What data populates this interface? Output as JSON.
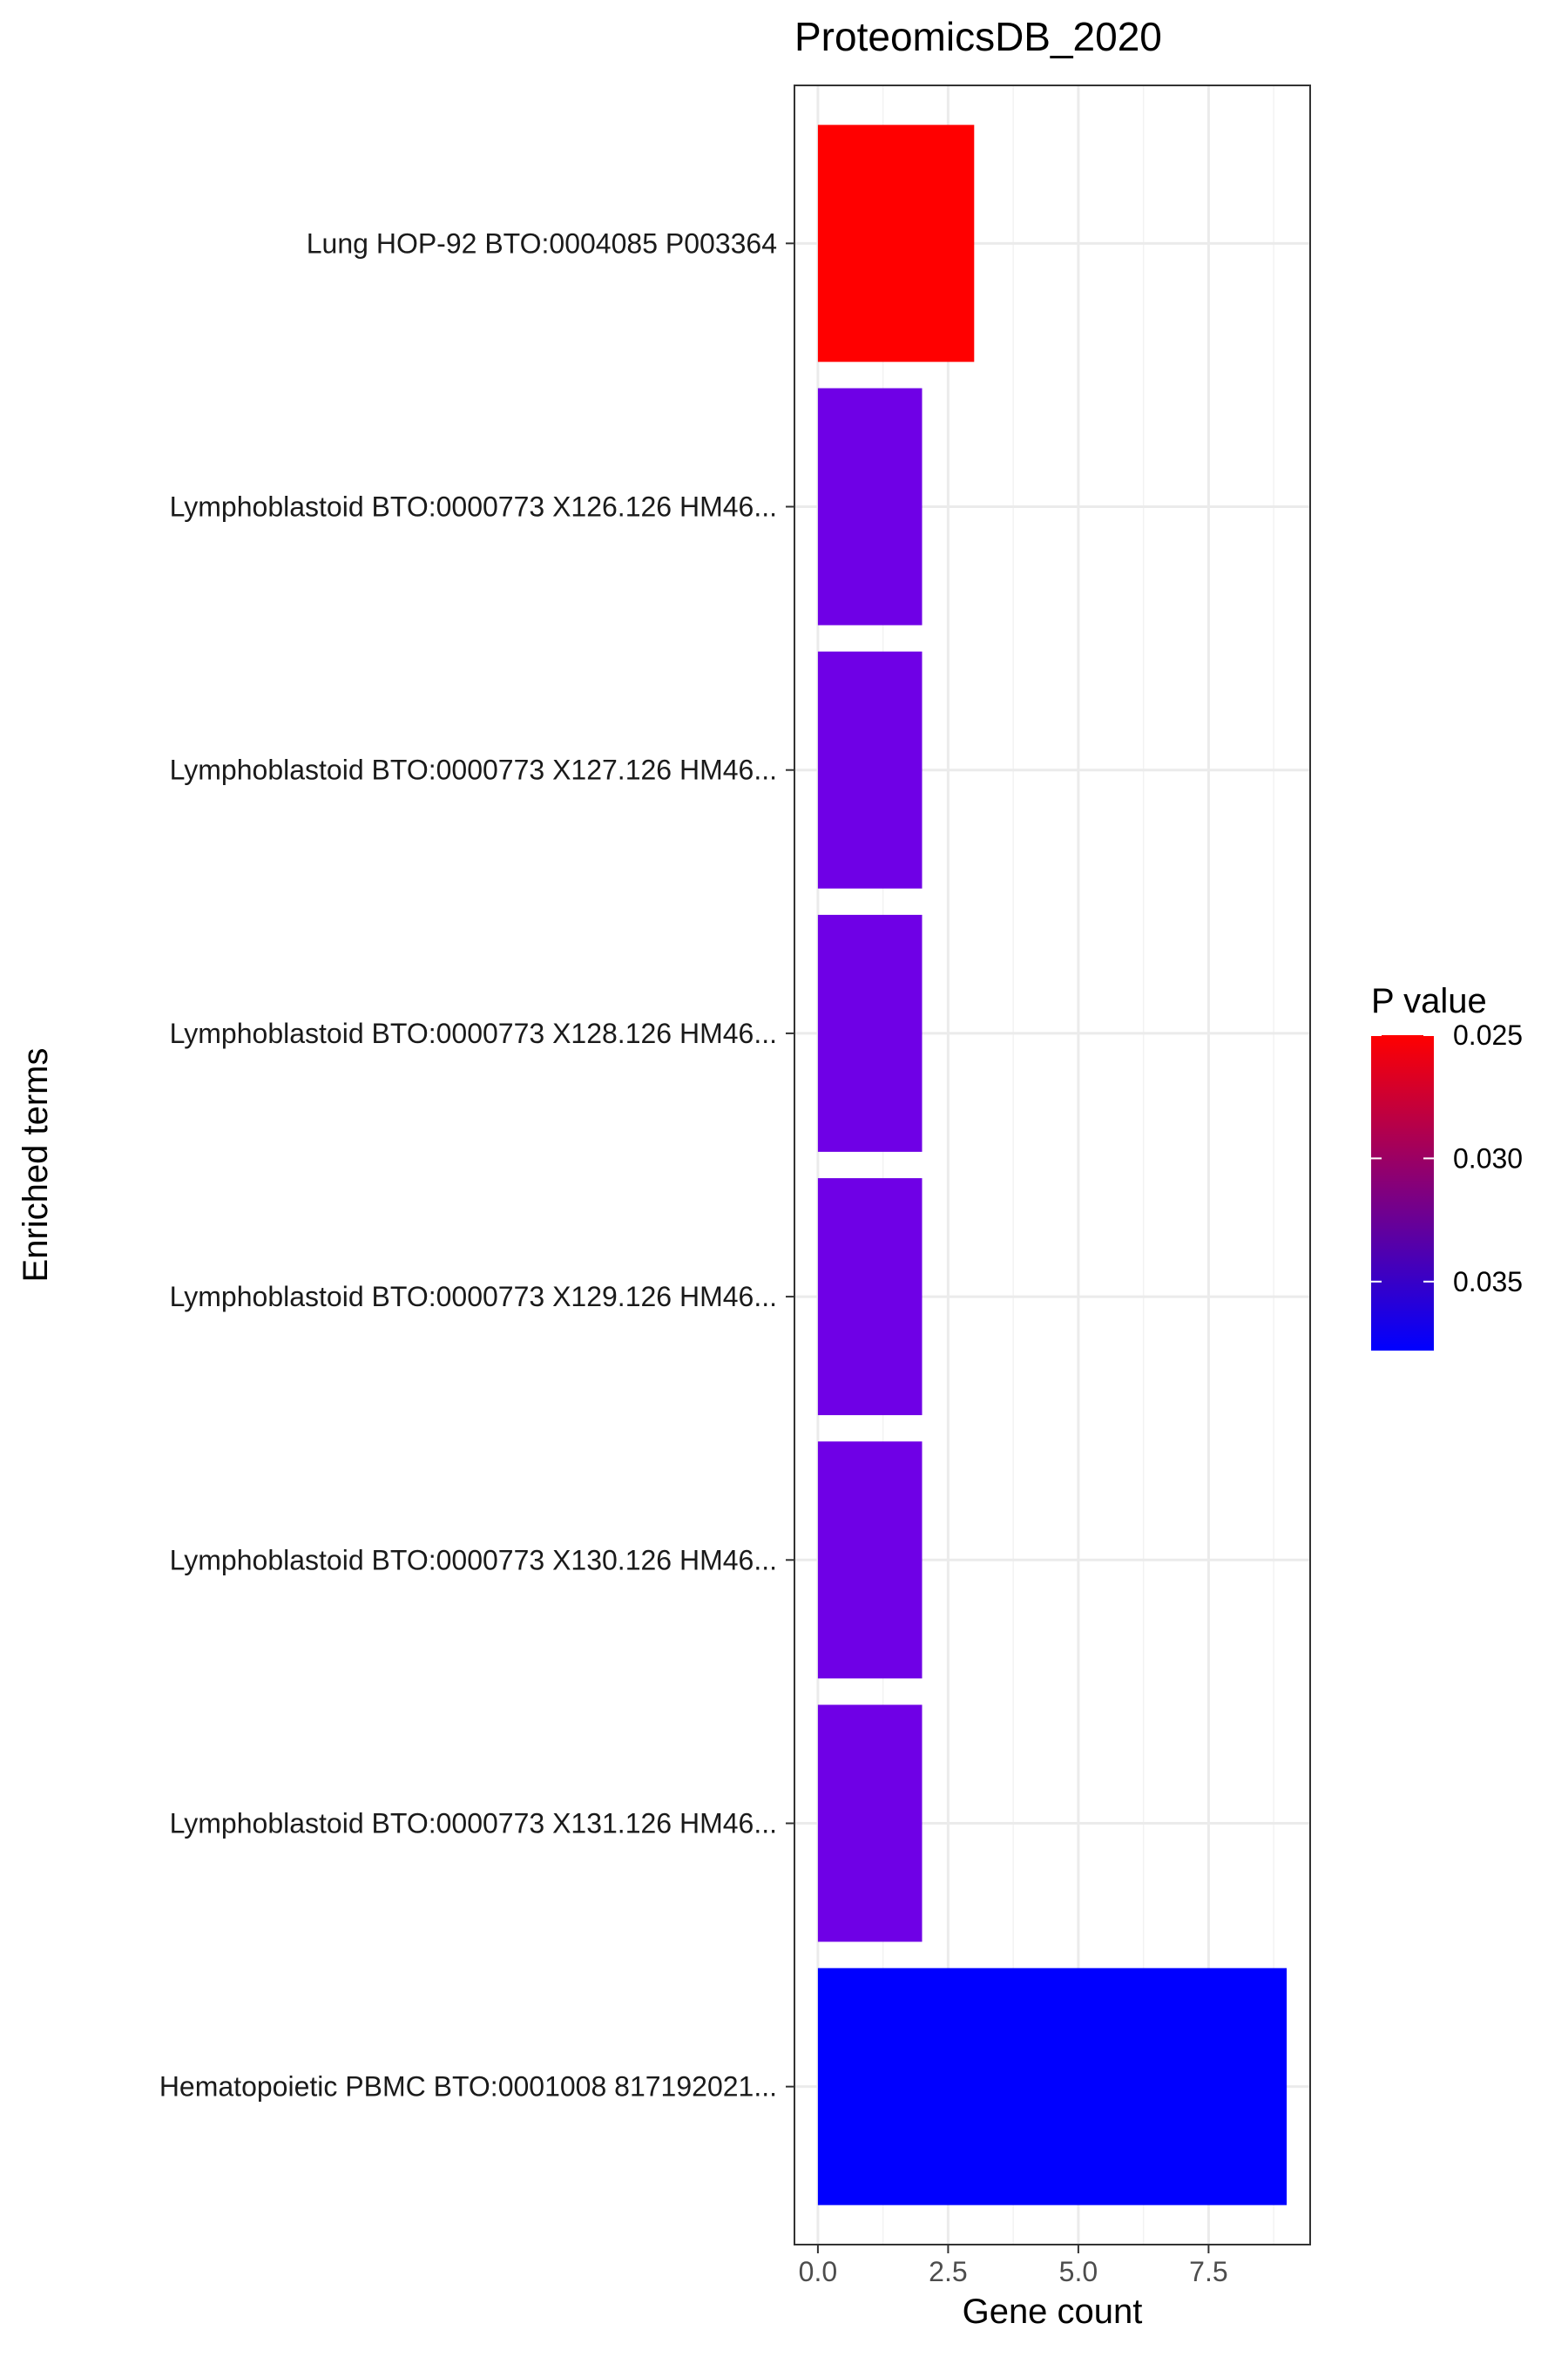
{
  "chart_data": {
    "type": "bar",
    "orientation": "horizontal",
    "title": "ProteomicsDB_2020",
    "xlabel": "Gene count",
    "ylabel": "Enriched terms",
    "xlim": [
      -0.45,
      9.45
    ],
    "x_ticks": [
      0,
      2.5,
      5,
      7.5
    ],
    "x_tick_labels": [
      "0.0",
      "2.5",
      "5.0",
      "7.5"
    ],
    "grid": true,
    "categories": [
      "Lung HOP-92 BTO:0004085 P003364",
      "Lymphoblastoid BTO:0000773 X126.126 HM46...",
      "Lymphoblastoid BTO:0000773 X127.126 HM46...",
      "Lymphoblastoid BTO:0000773 X128.126 HM46...",
      "Lymphoblastoid BTO:0000773 X129.126 HM46...",
      "Lymphoblastoid BTO:0000773 X130.126 HM46...",
      "Lymphoblastoid BTO:0000773 X131.126 HM46...",
      "Hematopoietic PBMC BTO:0001008 817192021..."
    ],
    "values": [
      3,
      2,
      2,
      2,
      2,
      2,
      2,
      9
    ],
    "bar_colors": [
      "#ff0000",
      "#6f00e6",
      "#6f00e6",
      "#6f00e6",
      "#6f00e6",
      "#6f00e6",
      "#6f00e6",
      "#0000ff"
    ],
    "legend": {
      "title": "P value",
      "position": "right",
      "ticks": [
        0.025,
        0.03,
        0.035
      ],
      "tick_labels": [
        "0.025",
        "0.030",
        "0.035"
      ],
      "range": [
        0.025,
        0.0378
      ],
      "color_low": "#ff0000",
      "color_high": "#0000ff"
    }
  }
}
